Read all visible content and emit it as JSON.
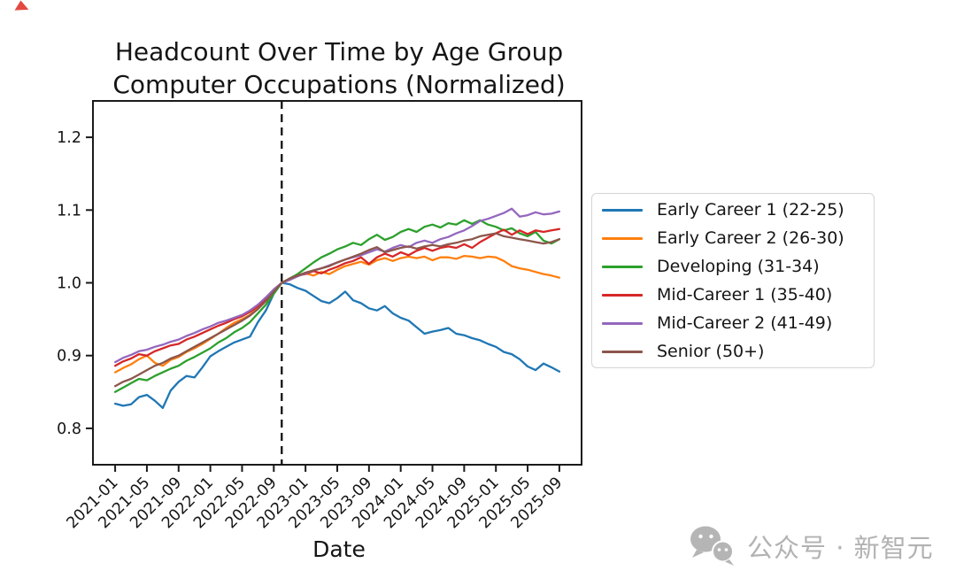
{
  "title": {
    "line1": "Headcount Over Time by Age Group",
    "line2": "Computer Occupations (Normalized)"
  },
  "watermark": {
    "text": "公众号 · 新智元",
    "icon": "wechat-icon",
    "color": "#b2b2b2"
  },
  "red_mark_color": "#e0352b",
  "chart_data": {
    "type": "line",
    "title": "Headcount Over Time by Age Group Computer Occupations (Normalized)",
    "xlabel": "Date",
    "ylabel": "",
    "x_start_month": "2021-01",
    "x_end_month": "2025-09",
    "x_tick_labels": [
      "2021-01",
      "2021-05",
      "2021-09",
      "2022-01",
      "2022-05",
      "2022-09",
      "2023-01",
      "2023-05",
      "2023-09",
      "2024-01",
      "2024-05",
      "2024-09",
      "2025-01",
      "2025-05",
      "2025-09"
    ],
    "y_ticks": [
      "0.8",
      "0.9",
      "1.0",
      "1.1",
      "1.2"
    ],
    "ylim": [
      0.75,
      1.25
    ],
    "grid": false,
    "legend_position": "right-outside",
    "vline": {
      "month": "2022-10",
      "style": "dashed",
      "color": "#111111"
    },
    "series": [
      {
        "name": "Early Career 1 (22-25)",
        "color": "#1f77b4",
        "values": [
          0.834,
          0.831,
          0.833,
          0.843,
          0.846,
          0.838,
          0.828,
          0.852,
          0.864,
          0.872,
          0.87,
          0.884,
          0.899,
          0.906,
          0.912,
          0.918,
          0.922,
          0.926,
          0.946,
          0.962,
          0.985,
          1.0,
          0.998,
          0.993,
          0.989,
          0.982,
          0.975,
          0.972,
          0.979,
          0.988,
          0.976,
          0.972,
          0.965,
          0.962,
          0.968,
          0.958,
          0.952,
          0.948,
          0.939,
          0.93,
          0.933,
          0.935,
          0.938,
          0.93,
          0.928,
          0.924,
          0.921,
          0.916,
          0.912,
          0.905,
          0.902,
          0.895,
          0.885,
          0.88,
          0.889,
          0.884,
          0.878
        ]
      },
      {
        "name": "Early Career 2 (26-30)",
        "color": "#ff7f0e",
        "values": [
          0.877,
          0.883,
          0.888,
          0.895,
          0.9,
          0.89,
          0.886,
          0.894,
          0.898,
          0.905,
          0.91,
          0.916,
          0.923,
          0.93,
          0.938,
          0.945,
          0.95,
          0.956,
          0.965,
          0.975,
          0.988,
          1.0,
          1.004,
          1.009,
          1.013,
          1.01,
          1.015,
          1.012,
          1.018,
          1.023,
          1.026,
          1.029,
          1.025,
          1.031,
          1.034,
          1.03,
          1.034,
          1.036,
          1.034,
          1.036,
          1.031,
          1.035,
          1.035,
          1.033,
          1.037,
          1.036,
          1.034,
          1.036,
          1.035,
          1.03,
          1.023,
          1.02,
          1.018,
          1.015,
          1.012,
          1.01,
          1.007
        ]
      },
      {
        "name": "Developing (31-34)",
        "color": "#2ca02c",
        "values": [
          0.85,
          0.856,
          0.862,
          0.868,
          0.866,
          0.872,
          0.877,
          0.882,
          0.886,
          0.893,
          0.898,
          0.904,
          0.91,
          0.918,
          0.924,
          0.932,
          0.938,
          0.946,
          0.958,
          0.97,
          0.985,
          1.0,
          1.006,
          1.012,
          1.02,
          1.028,
          1.035,
          1.04,
          1.046,
          1.05,
          1.055,
          1.052,
          1.06,
          1.066,
          1.059,
          1.063,
          1.07,
          1.074,
          1.07,
          1.077,
          1.08,
          1.076,
          1.082,
          1.08,
          1.086,
          1.081,
          1.086,
          1.08,
          1.077,
          1.072,
          1.075,
          1.068,
          1.064,
          1.07,
          1.058,
          1.054,
          1.06
        ]
      },
      {
        "name": "Mid-Career 1 (35-40)",
        "color": "#d62728",
        "values": [
          0.886,
          0.892,
          0.896,
          0.902,
          0.9,
          0.906,
          0.91,
          0.914,
          0.916,
          0.922,
          0.926,
          0.931,
          0.936,
          0.941,
          0.945,
          0.95,
          0.954,
          0.96,
          0.968,
          0.978,
          0.99,
          1.0,
          1.005,
          1.01,
          1.012,
          1.016,
          1.013,
          1.018,
          1.022,
          1.027,
          1.03,
          1.035,
          1.026,
          1.035,
          1.04,
          1.036,
          1.042,
          1.038,
          1.044,
          1.048,
          1.044,
          1.048,
          1.05,
          1.048,
          1.053,
          1.048,
          1.056,
          1.062,
          1.068,
          1.073,
          1.066,
          1.072,
          1.067,
          1.072,
          1.07,
          1.072,
          1.074
        ]
      },
      {
        "name": "Mid-Career 2 (41-49)",
        "color": "#9467bd",
        "values": [
          0.891,
          0.897,
          0.901,
          0.906,
          0.908,
          0.912,
          0.915,
          0.919,
          0.922,
          0.927,
          0.931,
          0.936,
          0.94,
          0.945,
          0.948,
          0.952,
          0.956,
          0.962,
          0.97,
          0.98,
          0.991,
          1.0,
          1.004,
          1.009,
          1.013,
          1.017,
          1.02,
          1.024,
          1.028,
          1.032,
          1.035,
          1.038,
          1.042,
          1.046,
          1.043,
          1.048,
          1.052,
          1.049,
          1.055,
          1.058,
          1.055,
          1.06,
          1.063,
          1.068,
          1.072,
          1.078,
          1.085,
          1.088,
          1.092,
          1.096,
          1.102,
          1.091,
          1.093,
          1.097,
          1.094,
          1.095,
          1.098
        ]
      },
      {
        "name": "Senior (50+)",
        "color": "#8c564b",
        "values": [
          0.858,
          0.864,
          0.868,
          0.874,
          0.88,
          0.886,
          0.89,
          0.896,
          0.9,
          0.906,
          0.912,
          0.918,
          0.924,
          0.93,
          0.936,
          0.942,
          0.948,
          0.955,
          0.964,
          0.975,
          0.988,
          1.0,
          1.006,
          1.01,
          1.014,
          1.017,
          1.02,
          1.023,
          1.028,
          1.032,
          1.036,
          1.04,
          1.045,
          1.049,
          1.042,
          1.045,
          1.048,
          1.05,
          1.047,
          1.05,
          1.052,
          1.05,
          1.053,
          1.055,
          1.058,
          1.06,
          1.064,
          1.066,
          1.068,
          1.064,
          1.062,
          1.06,
          1.058,
          1.056,
          1.054,
          1.056,
          1.06
        ]
      }
    ]
  }
}
